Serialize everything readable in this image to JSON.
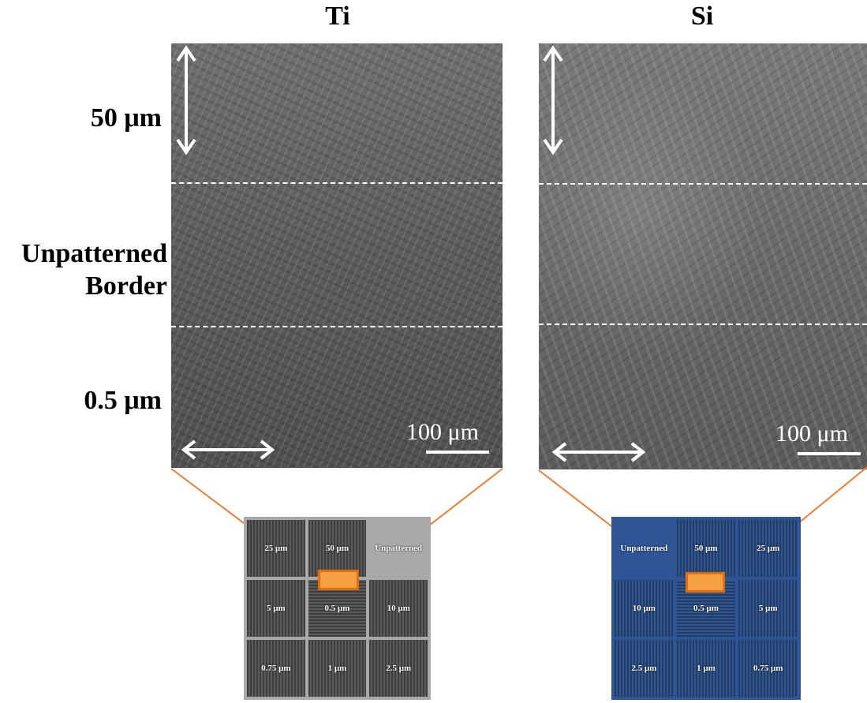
{
  "panels": {
    "ti": {
      "title": "Ti",
      "scale_label": "100 μm",
      "grid": [
        {
          "label": "25 μm",
          "style": "striped-vertical"
        },
        {
          "label": "50 μm",
          "style": "striped-vertical"
        },
        {
          "label": "Unpatterned",
          "style": "plain"
        },
        {
          "label": "5 μm",
          "style": "striped-vertical"
        },
        {
          "label": "0.5 μm",
          "style": "striped-horizontal"
        },
        {
          "label": "10 μm",
          "style": "striped-vertical"
        },
        {
          "label": "0.75 μm",
          "style": "striped-vertical"
        },
        {
          "label": "1 μm",
          "style": "striped-vertical"
        },
        {
          "label": "2.5 μm",
          "style": "striped-vertical"
        }
      ]
    },
    "si": {
      "title": "Si",
      "scale_label": "100 μm",
      "grid": [
        {
          "label": "Unpatterned",
          "style": "plain"
        },
        {
          "label": "50 μm",
          "style": "striped-vertical"
        },
        {
          "label": "25 μm",
          "style": "striped-vertical"
        },
        {
          "label": "10 μm",
          "style": "striped-vertical"
        },
        {
          "label": "0.5 μm",
          "style": "striped-horizontal"
        },
        {
          "label": "5 μm",
          "style": "striped-vertical"
        },
        {
          "label": "2.5 μm",
          "style": "striped-vertical"
        },
        {
          "label": "1 μm",
          "style": "striped-vertical"
        },
        {
          "label": "0.75 μm",
          "style": "striped-vertical"
        }
      ]
    }
  },
  "row_labels": {
    "top": "50 μm",
    "middle_line1": "Unpatterned",
    "middle_line2": "Border",
    "bottom": "0.5 μm"
  },
  "colors": {
    "connector": "#ed7d31",
    "highlight_fill": "#f4a043",
    "ti_substrate": "#a9a9a9",
    "si_substrate": "#2f5597"
  }
}
